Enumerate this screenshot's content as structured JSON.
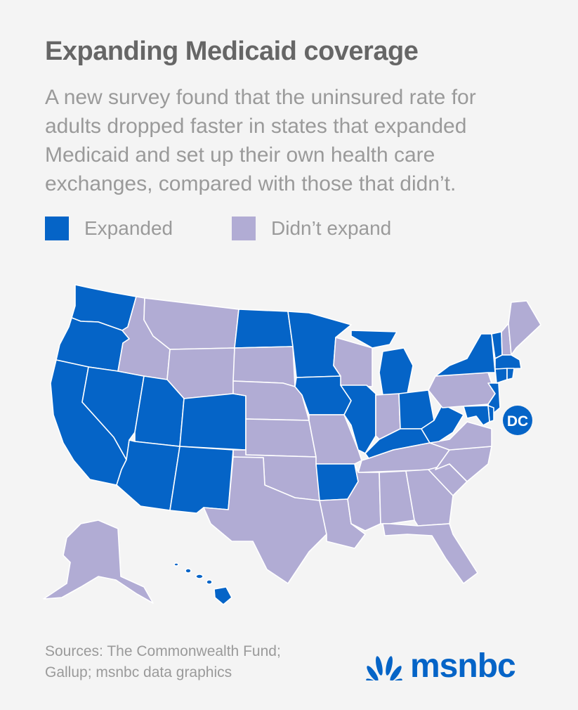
{
  "title": "Expanding Medicaid coverage",
  "subtitle": "A new survey found that the uninsured rate for adults dropped faster in states that expanded Medicaid and set up their own health care exchanges, compared with those that didn’t.",
  "legend": {
    "expanded": {
      "label": "Expanded",
      "color": "#0564c7"
    },
    "not_expanded": {
      "label": "Didn’t expand",
      "color": "#b1acd4"
    }
  },
  "map": {
    "dc_label": "DC",
    "states": [
      {
        "id": "WA",
        "status": "expanded"
      },
      {
        "id": "OR",
        "status": "expanded"
      },
      {
        "id": "CA",
        "status": "expanded"
      },
      {
        "id": "NV",
        "status": "expanded"
      },
      {
        "id": "ID",
        "status": "not_expanded"
      },
      {
        "id": "MT",
        "status": "not_expanded"
      },
      {
        "id": "WY",
        "status": "not_expanded"
      },
      {
        "id": "UT",
        "status": "expanded"
      },
      {
        "id": "CO",
        "status": "expanded"
      },
      {
        "id": "AZ",
        "status": "expanded"
      },
      {
        "id": "NM",
        "status": "expanded"
      },
      {
        "id": "ND",
        "status": "expanded"
      },
      {
        "id": "SD",
        "status": "not_expanded"
      },
      {
        "id": "NE",
        "status": "not_expanded"
      },
      {
        "id": "KS",
        "status": "not_expanded"
      },
      {
        "id": "OK",
        "status": "not_expanded"
      },
      {
        "id": "TX",
        "status": "not_expanded"
      },
      {
        "id": "MN",
        "status": "expanded"
      },
      {
        "id": "IA",
        "status": "expanded"
      },
      {
        "id": "MO",
        "status": "not_expanded"
      },
      {
        "id": "AR",
        "status": "expanded"
      },
      {
        "id": "LA",
        "status": "not_expanded"
      },
      {
        "id": "WI",
        "status": "not_expanded"
      },
      {
        "id": "IL",
        "status": "expanded"
      },
      {
        "id": "MI",
        "status": "expanded"
      },
      {
        "id": "IN",
        "status": "not_expanded"
      },
      {
        "id": "OH",
        "status": "expanded"
      },
      {
        "id": "KY",
        "status": "expanded"
      },
      {
        "id": "TN",
        "status": "not_expanded"
      },
      {
        "id": "MS",
        "status": "not_expanded"
      },
      {
        "id": "AL",
        "status": "not_expanded"
      },
      {
        "id": "GA",
        "status": "not_expanded"
      },
      {
        "id": "FL",
        "status": "not_expanded"
      },
      {
        "id": "SC",
        "status": "not_expanded"
      },
      {
        "id": "NC",
        "status": "not_expanded"
      },
      {
        "id": "VA",
        "status": "not_expanded"
      },
      {
        "id": "WV",
        "status": "expanded"
      },
      {
        "id": "PA",
        "status": "not_expanded"
      },
      {
        "id": "NY",
        "status": "expanded"
      },
      {
        "id": "VT",
        "status": "expanded"
      },
      {
        "id": "NH",
        "status": "not_expanded"
      },
      {
        "id": "ME",
        "status": "not_expanded"
      },
      {
        "id": "MA",
        "status": "expanded"
      },
      {
        "id": "CT",
        "status": "expanded"
      },
      {
        "id": "RI",
        "status": "expanded"
      },
      {
        "id": "NJ",
        "status": "expanded"
      },
      {
        "id": "DE",
        "status": "expanded"
      },
      {
        "id": "MD",
        "status": "expanded"
      },
      {
        "id": "DC",
        "status": "expanded"
      },
      {
        "id": "AK",
        "status": "not_expanded"
      },
      {
        "id": "HI",
        "status": "expanded"
      }
    ]
  },
  "sources": {
    "line1": "Sources: The Commonwealth Fund;",
    "line2": "Gallup; msnbc data graphics"
  },
  "logo": {
    "text": "msnbc",
    "icon": "peacock-icon"
  }
}
